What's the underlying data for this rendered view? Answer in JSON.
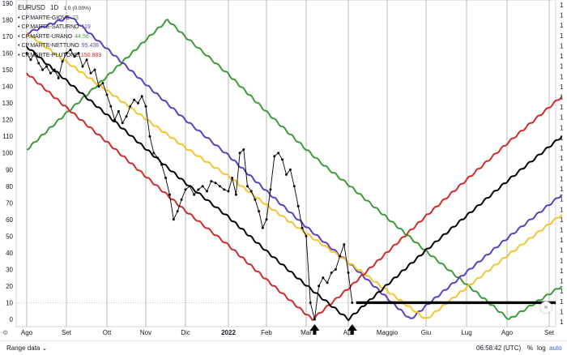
{
  "legend": {
    "symbol": "EURUSD",
    "interval": "1D",
    "change": "1 0 (0.00%)",
    "items": [
      {
        "name": "CP.MARTE-GIOVE",
        "value": "73",
        "color": "#3b9b3b"
      },
      {
        "name": "CP.MARTE-SATURNO",
        "value": "119",
        "color": "#6b3fc4"
      },
      {
        "name": "CP.MARTE-URANO",
        "value": "44.56",
        "color": "#3b9b3b"
      },
      {
        "name": "CP.MARTE-NETTUNO",
        "value": "95.436",
        "color": "#6b3fc4"
      },
      {
        "name": "CP.MARTE-PLUTONE",
        "value": "150.883",
        "color": "#d12a2a"
      }
    ]
  },
  "bottom": {
    "range_label": "Range data",
    "time": "06:58:42 (UTC)",
    "pct": "%",
    "log": "log",
    "auto": "auto"
  },
  "scroll_button": "»",
  "settings_icon": "gear-icon",
  "chart_data": {
    "type": "line",
    "y_ticks": [
      190,
      180,
      170,
      160,
      150,
      140,
      130,
      120,
      110,
      100,
      90,
      80,
      70,
      60,
      50,
      40,
      30,
      20,
      10,
      0
    ],
    "ylim": [
      -10,
      190
    ],
    "right_axis_labels": [
      "1",
      "1",
      "1",
      "1",
      "1",
      "1",
      "1",
      "1",
      "1",
      "1",
      "1",
      "1",
      "1",
      "1",
      "1",
      "1",
      "1",
      "1",
      "1",
      "1",
      "1",
      "1",
      "1",
      "1",
      "1",
      "1",
      "1",
      "1",
      "1",
      "1",
      "1",
      "1"
    ],
    "x_ticks": [
      {
        "label": "Ago",
        "bold": false
      },
      {
        "label": "Set",
        "bold": false
      },
      {
        "label": "Ott",
        "bold": false
      },
      {
        "label": "Nov",
        "bold": false
      },
      {
        "label": "Dic",
        "bold": false
      },
      {
        "label": "2022",
        "bold": true
      },
      {
        "label": "Feb",
        "bold": false
      },
      {
        "label": "Mar",
        "bold": false
      },
      {
        "label": "Apr",
        "bold": false
      },
      {
        "label": "Maggio",
        "bold": false
      },
      {
        "label": "Giu",
        "bold": false
      },
      {
        "label": "Lug",
        "bold": false
      },
      {
        "label": "Ago",
        "bold": false
      },
      {
        "label": "Set",
        "bold": false
      }
    ],
    "month_index_of_ticks": [
      0,
      1,
      2,
      3,
      4,
      5,
      6,
      7,
      8,
      9,
      10,
      11,
      12,
      13
    ],
    "series": [
      {
        "color": "#3b9b3b",
        "points": [
          [
            0,
            102
          ],
          [
            3.55,
            180
          ],
          [
            7.45,
            92
          ],
          [
            12.05,
            0
          ],
          [
            13.3,
            20
          ]
        ]
      },
      {
        "color": "#5b3fc0",
        "points": [
          [
            0,
            172
          ],
          [
            1.1,
            182
          ],
          [
            9.6,
            0
          ],
          [
            13.3,
            75
          ]
        ]
      },
      {
        "color": "#f4c430",
        "points": [
          [
            0,
            172
          ],
          [
            10.0,
            0
          ],
          [
            13.3,
            63
          ]
        ]
      },
      {
        "color": "#d12a2a",
        "points": [
          [
            0,
            148
          ],
          [
            7.15,
            0
          ],
          [
            13.3,
            134
          ]
        ]
      },
      {
        "color": "#000000",
        "points": [
          [
            0,
            164
          ],
          [
            8.0,
            0
          ],
          [
            13.3,
            110
          ]
        ]
      }
    ],
    "price": {
      "color": "#000000",
      "points": [
        [
          0.0,
          160
        ],
        [
          0.1,
          156
        ],
        [
          0.2,
          160
        ],
        [
          0.3,
          154
        ],
        [
          0.4,
          150
        ],
        [
          0.5,
          152
        ],
        [
          0.6,
          148
        ],
        [
          0.7,
          150
        ],
        [
          0.8,
          145
        ],
        [
          0.9,
          155
        ],
        [
          1.0,
          160
        ],
        [
          1.1,
          162
        ],
        [
          1.2,
          158
        ],
        [
          1.3,
          160
        ],
        [
          1.4,
          152
        ],
        [
          1.5,
          156
        ],
        [
          1.6,
          148
        ],
        [
          1.7,
          150
        ],
        [
          1.8,
          140
        ],
        [
          1.9,
          142
        ],
        [
          2.0,
          135
        ],
        [
          2.1,
          128
        ],
        [
          2.2,
          120
        ],
        [
          2.3,
          125
        ],
        [
          2.4,
          118
        ],
        [
          2.5,
          122
        ],
        [
          2.6,
          128
        ],
        [
          2.7,
          132
        ],
        [
          2.8,
          130
        ],
        [
          2.9,
          134
        ],
        [
          3.0,
          128
        ],
        [
          3.1,
          110
        ],
        [
          3.2,
          100
        ],
        [
          3.3,
          97
        ],
        [
          3.4,
          93
        ],
        [
          3.5,
          85
        ],
        [
          3.6,
          75
        ],
        [
          3.7,
          60
        ],
        [
          3.8,
          65
        ],
        [
          3.9,
          72
        ],
        [
          4.0,
          78
        ],
        [
          4.1,
          80
        ],
        [
          4.2,
          75
        ],
        [
          4.3,
          78
        ],
        [
          4.4,
          80
        ],
        [
          4.5,
          77
        ],
        [
          4.6,
          83
        ],
        [
          4.7,
          82
        ],
        [
          4.8,
          80
        ],
        [
          4.9,
          78
        ],
        [
          5.0,
          77
        ],
        [
          5.1,
          85
        ],
        [
          5.2,
          75
        ],
        [
          5.3,
          100
        ],
        [
          5.4,
          102
        ],
        [
          5.5,
          80
        ],
        [
          5.6,
          77
        ],
        [
          5.7,
          72
        ],
        [
          5.8,
          65
        ],
        [
          5.9,
          55
        ],
        [
          6.0,
          60
        ],
        [
          6.1,
          78
        ],
        [
          6.2,
          98
        ],
        [
          6.3,
          100
        ],
        [
          6.4,
          96
        ],
        [
          6.5,
          87
        ],
        [
          6.6,
          90
        ],
        [
          6.7,
          80
        ],
        [
          6.8,
          68
        ],
        [
          6.9,
          55
        ],
        [
          7.0,
          50
        ],
        [
          7.1,
          10
        ],
        [
          7.2,
          0
        ],
        [
          7.3,
          20
        ],
        [
          7.4,
          25
        ],
        [
          7.5,
          22
        ],
        [
          7.6,
          28
        ],
        [
          7.7,
          30
        ],
        [
          7.8,
          38
        ],
        [
          7.9,
          45
        ],
        [
          8.0,
          28
        ],
        [
          8.1,
          10
        ]
      ]
    },
    "support_line": {
      "value": 10,
      "from_month": 8.2,
      "to_month": 13.3,
      "color": "#000000"
    },
    "arrows": [
      {
        "month": 7.2
      },
      {
        "month": 8.1
      }
    ]
  }
}
